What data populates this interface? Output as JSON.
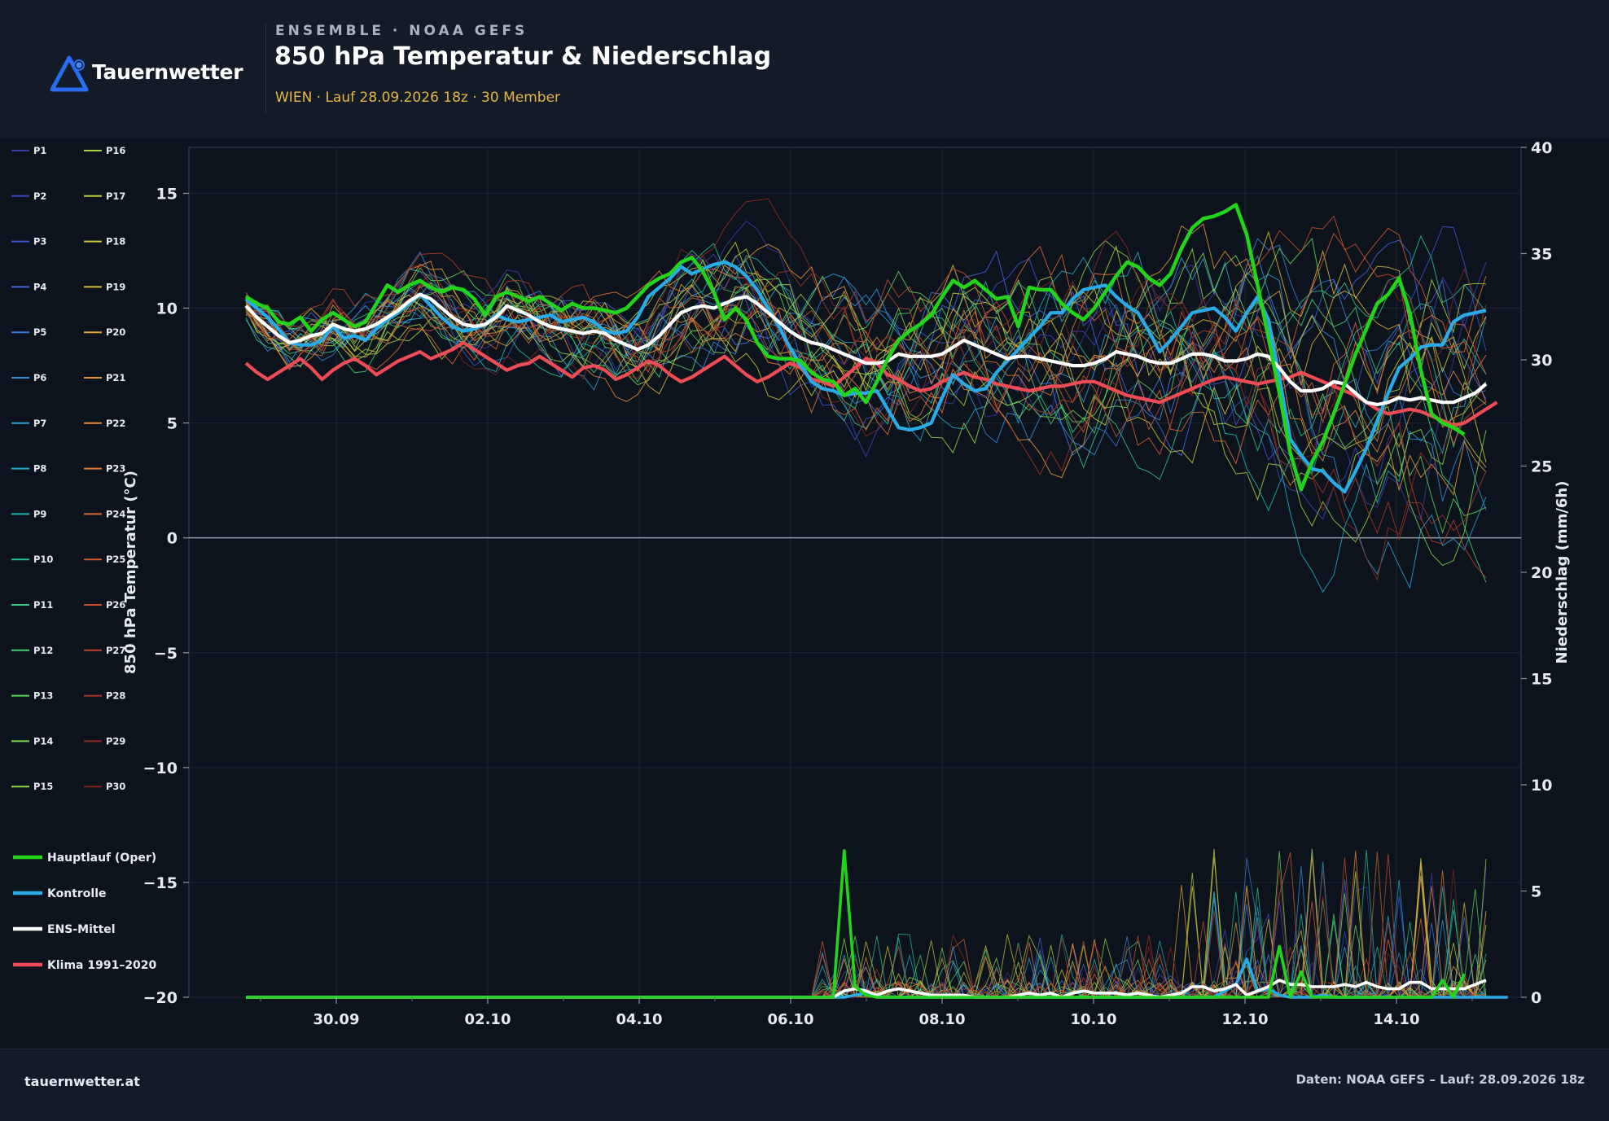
{
  "brand": {
    "name": "Tauernwetter",
    "logo_color": "#2a6df0",
    "accent_dot": "#4b86ff"
  },
  "header": {
    "kicker": "ENSEMBLE · NOAA GEFS",
    "title": "850 hPa Temperatur & Niederschlag",
    "subtitle": "WIEN · Lauf 28.09.2026 18z · 30 Member"
  },
  "footer": {
    "left": "tauernwetter.at",
    "right": "Daten: NOAA GEFS – Lauf: 28.09.2026 18z"
  },
  "colors": {
    "background": "#0d131c",
    "panel": "#121b27",
    "oper": "#22d41c",
    "control": "#29abe8",
    "mean": "#ffffff",
    "climate": "#ee4c54",
    "zero_line": "#8e9aa8",
    "subtitle": "#e7b544"
  },
  "chart_data": {
    "type": "line",
    "xlabel": "",
    "x_start": "28.09.2026 18z",
    "x_step_hours": 6,
    "x_ticks": [
      "30.09",
      "02.10",
      "04.10",
      "06.10",
      "08.10",
      "10.10",
      "12.10",
      "14.10"
    ],
    "y_left": {
      "label": "850 hPa Temperatur (°C)",
      "range": [
        -20,
        17
      ],
      "ticks": [
        15,
        10,
        5,
        0,
        -5,
        -10,
        -15,
        -20
      ]
    },
    "y_right": {
      "label": "Niederschlag (mm/6h)",
      "range": [
        0,
        40
      ],
      "ticks": [
        40,
        35,
        30,
        25,
        20,
        15,
        10,
        5,
        0
      ]
    },
    "grid": true,
    "legend_position": "left",
    "special_series": [
      {
        "name": "Hauptlauf (Oper)",
        "color": "#22d41c",
        "temperature": [
          10.5,
          10.2,
          10.0,
          9.4,
          9.3,
          9.6,
          9.0,
          9.5,
          9.8,
          9.5,
          9.2,
          9.4,
          10.2,
          11.0,
          10.7,
          11.0,
          11.2,
          10.9,
          10.7,
          10.9,
          10.8,
          10.4,
          9.7,
          10.5,
          10.7,
          10.5,
          10.3,
          10.5,
          10.2,
          9.9,
          10.2,
          10.0,
          10.0,
          9.9,
          9.8,
          10.0,
          10.5,
          11.0,
          11.3,
          11.5,
          12.0,
          12.2,
          11.6,
          10.7,
          9.5,
          10.0,
          9.5,
          8.5,
          7.9,
          7.8,
          7.8,
          7.7,
          7.2,
          6.9,
          6.8,
          6.2,
          6.5,
          5.9,
          6.8,
          7.8,
          8.6,
          9.0,
          9.3,
          9.7,
          10.5,
          11.2,
          10.9,
          11.2,
          10.8,
          10.4,
          10.5,
          9.2,
          10.9,
          10.8,
          10.8,
          10.2,
          9.8,
          9.5,
          10.0,
          10.7,
          11.4,
          12.0,
          11.8,
          11.3,
          11.0,
          11.5,
          12.6,
          13.5,
          13.9,
          14.0,
          14.2,
          14.5,
          13.2,
          11.0,
          8.7,
          6.3,
          3.7,
          2.1,
          3.3,
          4.2,
          5.4,
          6.7,
          8.0,
          9.1,
          10.2,
          10.6,
          11.3,
          9.8,
          7.3,
          5.4,
          5.0,
          4.8,
          4.5
        ],
        "precip": [
          0,
          0,
          0,
          0,
          0,
          0,
          0,
          0,
          0,
          0,
          0,
          0,
          0,
          0,
          0,
          0,
          0,
          0,
          0,
          0,
          0,
          0,
          0,
          0,
          0,
          0,
          0,
          0,
          0,
          0,
          0,
          0,
          0,
          0,
          0,
          0,
          0,
          0,
          0,
          0,
          0,
          0,
          0,
          0,
          0,
          0,
          0,
          0,
          0,
          0,
          0,
          0,
          0,
          0,
          0,
          6.9,
          0.5,
          0.1,
          0,
          0,
          0,
          0,
          0,
          0,
          0,
          0,
          0,
          0,
          0,
          0,
          0,
          0,
          0,
          0,
          0,
          0,
          0,
          0,
          0,
          0,
          0,
          0,
          0,
          0,
          0,
          0,
          0,
          0,
          0,
          0,
          0,
          0,
          0,
          0,
          0,
          2.4,
          0,
          1.2,
          0,
          0,
          0,
          0,
          0,
          0,
          0,
          0,
          0,
          0,
          0,
          0,
          0.8,
          0,
          1.1
        ]
      },
      {
        "name": "Kontrolle",
        "color": "#29abe8",
        "temperature": [
          10.4,
          10.0,
          9.6,
          9.1,
          8.5,
          8.4,
          8.4,
          8.6,
          9.2,
          8.7,
          8.8,
          8.6,
          9.1,
          9.5,
          9.8,
          10.2,
          10.6,
          10.1,
          9.6,
          9.2,
          9.0,
          9.1,
          9.3,
          9.7,
          9.5,
          9.4,
          9.5,
          9.6,
          9.7,
          9.4,
          9.5,
          9.6,
          9.4,
          9.0,
          8.9,
          9.0,
          9.6,
          10.5,
          10.9,
          11.3,
          11.8,
          11.5,
          11.7,
          11.9,
          12.0,
          11.8,
          11.4,
          10.8,
          10.0,
          9.2,
          8.3,
          7.5,
          6.8,
          6.5,
          6.4,
          6.2,
          6.3,
          6.3,
          6.4,
          5.6,
          4.8,
          4.7,
          4.8,
          5.0,
          6.1,
          7.1,
          6.7,
          6.4,
          6.5,
          7.2,
          7.7,
          8.2,
          8.7,
          9.2,
          9.8,
          9.8,
          10.4,
          10.8,
          10.9,
          11.0,
          10.5,
          10.1,
          9.8,
          9.0,
          8.1,
          8.6,
          9.2,
          9.8,
          9.9,
          10.0,
          9.6,
          9.0,
          9.8,
          10.5,
          9.5,
          7.0,
          4.3,
          3.6,
          3.0,
          2.9,
          2.4,
          2.0,
          2.9,
          3.9,
          5.1,
          6.3,
          7.4,
          7.8,
          8.3,
          8.4,
          8.4,
          9.4,
          9.7,
          9.8,
          9.9
        ],
        "precip": [
          0,
          0,
          0,
          0,
          0,
          0,
          0,
          0,
          0,
          0,
          0,
          0,
          0,
          0,
          0,
          0,
          0,
          0,
          0,
          0,
          0,
          0,
          0,
          0,
          0,
          0,
          0,
          0,
          0,
          0,
          0,
          0,
          0,
          0,
          0,
          0,
          0,
          0,
          0,
          0,
          0,
          0,
          0,
          0,
          0,
          0,
          0,
          0,
          0,
          0,
          0,
          0,
          0,
          0,
          0,
          0,
          0.1,
          0.2,
          0,
          0,
          0,
          0,
          0,
          0,
          0,
          0,
          0,
          0,
          0,
          0,
          0,
          0,
          0,
          0,
          0,
          0,
          0,
          0,
          0,
          0,
          0,
          0,
          0,
          0,
          0,
          0,
          0,
          0,
          0,
          0,
          0.3,
          0.6,
          1.8,
          0.3,
          0.4,
          0.1,
          0,
          0,
          0,
          0.1,
          0,
          0,
          0,
          0,
          0,
          0,
          0,
          0,
          0,
          0,
          0,
          0,
          0,
          0,
          0,
          0,
          0
        ]
      },
      {
        "name": "ENS-Mittel",
        "color": "#ffffff",
        "temperature": [
          10.1,
          9.6,
          9.2,
          8.8,
          8.5,
          8.6,
          8.8,
          8.9,
          9.3,
          9.1,
          9.0,
          9.1,
          9.3,
          9.6,
          9.9,
          10.3,
          10.6,
          10.4,
          10.0,
          9.6,
          9.3,
          9.2,
          9.3,
          9.6,
          10.1,
          9.9,
          9.7,
          9.4,
          9.2,
          9.1,
          9.0,
          8.9,
          9.0,
          8.9,
          8.6,
          8.4,
          8.2,
          8.4,
          8.8,
          9.3,
          9.8,
          10.0,
          10.1,
          10.0,
          10.2,
          10.4,
          10.5,
          10.2,
          9.8,
          9.4,
          9.0,
          8.7,
          8.5,
          8.4,
          8.2,
          8.0,
          7.8,
          7.6,
          7.6,
          7.7,
          8.0,
          7.9,
          7.9,
          7.9,
          8.0,
          8.3,
          8.6,
          8.4,
          8.2,
          8.0,
          7.8,
          7.9,
          7.9,
          7.8,
          7.7,
          7.6,
          7.5,
          7.5,
          7.6,
          7.8,
          8.1,
          8.0,
          7.9,
          7.7,
          7.6,
          7.6,
          7.8,
          8.0,
          8.0,
          7.9,
          7.7,
          7.7,
          7.8,
          8.0,
          7.9,
          7.4,
          6.8,
          6.4,
          6.4,
          6.5,
          6.8,
          6.7,
          6.3,
          5.9,
          5.8,
          5.9,
          6.1,
          6.0,
          6.1,
          6.0,
          5.9,
          5.9,
          6.1,
          6.3,
          6.7
        ],
        "precip": [
          0,
          0,
          0,
          0,
          0,
          0,
          0,
          0,
          0,
          0,
          0,
          0,
          0,
          0,
          0,
          0,
          0,
          0,
          0,
          0,
          0,
          0,
          0,
          0,
          0,
          0,
          0,
          0,
          0,
          0,
          0,
          0,
          0,
          0,
          0,
          0,
          0,
          0,
          0,
          0,
          0,
          0,
          0,
          0,
          0,
          0,
          0,
          0,
          0,
          0,
          0,
          0,
          0,
          0,
          0,
          0.3,
          0.4,
          0.3,
          0.1,
          0.3,
          0.4,
          0.3,
          0.2,
          0.1,
          0.1,
          0.1,
          0.1,
          0,
          0,
          0,
          0,
          0.1,
          0.2,
          0.1,
          0.2,
          0,
          0.2,
          0.3,
          0.2,
          0.2,
          0.2,
          0.1,
          0.2,
          0.1,
          0,
          0.1,
          0.2,
          0.5,
          0.5,
          0.3,
          0.4,
          0.6,
          0.1,
          0.3,
          0.5,
          0.8,
          0.6,
          0.6,
          0.5,
          0.5,
          0.5,
          0.6,
          0.5,
          0.7,
          0.5,
          0.4,
          0.4,
          0.7,
          0.7,
          0.4,
          0.4,
          0.4,
          0.4,
          0.6,
          0.8
        ]
      },
      {
        "name": "Klima 1991–2020",
        "color": "#ee4c54",
        "temperature": [
          7.6,
          7.2,
          6.9,
          7.2,
          7.5,
          7.8,
          7.4,
          6.9,
          7.3,
          7.6,
          7.8,
          7.5,
          7.1,
          7.4,
          7.7,
          7.9,
          8.1,
          7.8,
          8.0,
          8.2,
          8.5,
          8.2,
          7.9,
          7.6,
          7.3,
          7.5,
          7.6,
          7.9,
          7.6,
          7.3,
          7.0,
          7.4,
          7.5,
          7.3,
          6.9,
          7.1,
          7.4,
          7.7,
          7.5,
          7.1,
          6.8,
          7.0,
          7.3,
          7.6,
          7.9,
          7.5,
          7.1,
          6.8,
          7.0,
          7.3,
          7.6,
          7.4,
          6.9,
          6.8,
          6.6,
          7.0,
          7.4,
          7.8,
          7.6,
          7.1,
          6.9,
          6.6,
          6.4,
          6.5,
          6.8,
          7.0,
          7.2,
          7.0,
          6.9,
          6.7,
          6.6,
          6.5,
          6.4,
          6.5,
          6.6,
          6.6,
          6.7,
          6.8,
          6.8,
          6.6,
          6.4,
          6.2,
          6.1,
          6.0,
          5.9,
          6.1,
          6.3,
          6.5,
          6.7,
          6.9,
          7.0,
          6.9,
          6.8,
          6.7,
          6.8,
          6.9,
          7.0,
          7.2,
          7.0,
          6.8,
          6.6,
          6.4,
          6.2,
          5.9,
          5.6,
          5.4,
          5.5,
          5.6,
          5.5,
          5.3,
          5.1,
          4.9,
          5.0,
          5.3,
          5.6,
          5.9
        ]
      }
    ],
    "members": [
      {
        "name": "P1",
        "color": "#3a3ba0",
        "seed": 11
      },
      {
        "name": "P2",
        "color": "#3b46b8",
        "seed": 12
      },
      {
        "name": "P3",
        "color": "#3e58cf",
        "seed": 13
      },
      {
        "name": "P4",
        "color": "#4169dd",
        "seed": 14
      },
      {
        "name": "P5",
        "color": "#3d7be2",
        "seed": 15
      },
      {
        "name": "P6",
        "color": "#368de0",
        "seed": 16
      },
      {
        "name": "P7",
        "color": "#2c9fd8",
        "seed": 17
      },
      {
        "name": "P8",
        "color": "#23acc8",
        "seed": 18
      },
      {
        "name": "P9",
        "color": "#1fb6b0",
        "seed": 19
      },
      {
        "name": "P10",
        "color": "#24bf98",
        "seed": 20
      },
      {
        "name": "P11",
        "color": "#33c684",
        "seed": 21
      },
      {
        "name": "P12",
        "color": "#47cc72",
        "seed": 22
      },
      {
        "name": "P13",
        "color": "#5fd163",
        "seed": 23
      },
      {
        "name": "P14",
        "color": "#79d555",
        "seed": 24
      },
      {
        "name": "P15",
        "color": "#92d64a",
        "seed": 25
      },
      {
        "name": "P16",
        "color": "#a8d442",
        "seed": 26
      },
      {
        "name": "P17",
        "color": "#bcd03e",
        "seed": 27
      },
      {
        "name": "P18",
        "color": "#ccc83b",
        "seed": 28
      },
      {
        "name": "P19",
        "color": "#d8bb3a",
        "seed": 29
      },
      {
        "name": "P20",
        "color": "#e1aa3a",
        "seed": 30
      },
      {
        "name": "P21",
        "color": "#e69a3b",
        "seed": 31
      },
      {
        "name": "P22",
        "color": "#e6893b",
        "seed": 32
      },
      {
        "name": "P23",
        "color": "#e3783a",
        "seed": 33
      },
      {
        "name": "P24",
        "color": "#dd6838",
        "seed": 34
      },
      {
        "name": "P25",
        "color": "#d45a34",
        "seed": 35
      },
      {
        "name": "P26",
        "color": "#c84d30",
        "seed": 36
      },
      {
        "name": "P27",
        "color": "#b8412c",
        "seed": 37
      },
      {
        "name": "P28",
        "color": "#a63628",
        "seed": 38
      },
      {
        "name": "P29",
        "color": "#922d24",
        "seed": 39
      },
      {
        "name": "P30",
        "color": "#7e2620",
        "seed": 40
      }
    ]
  }
}
